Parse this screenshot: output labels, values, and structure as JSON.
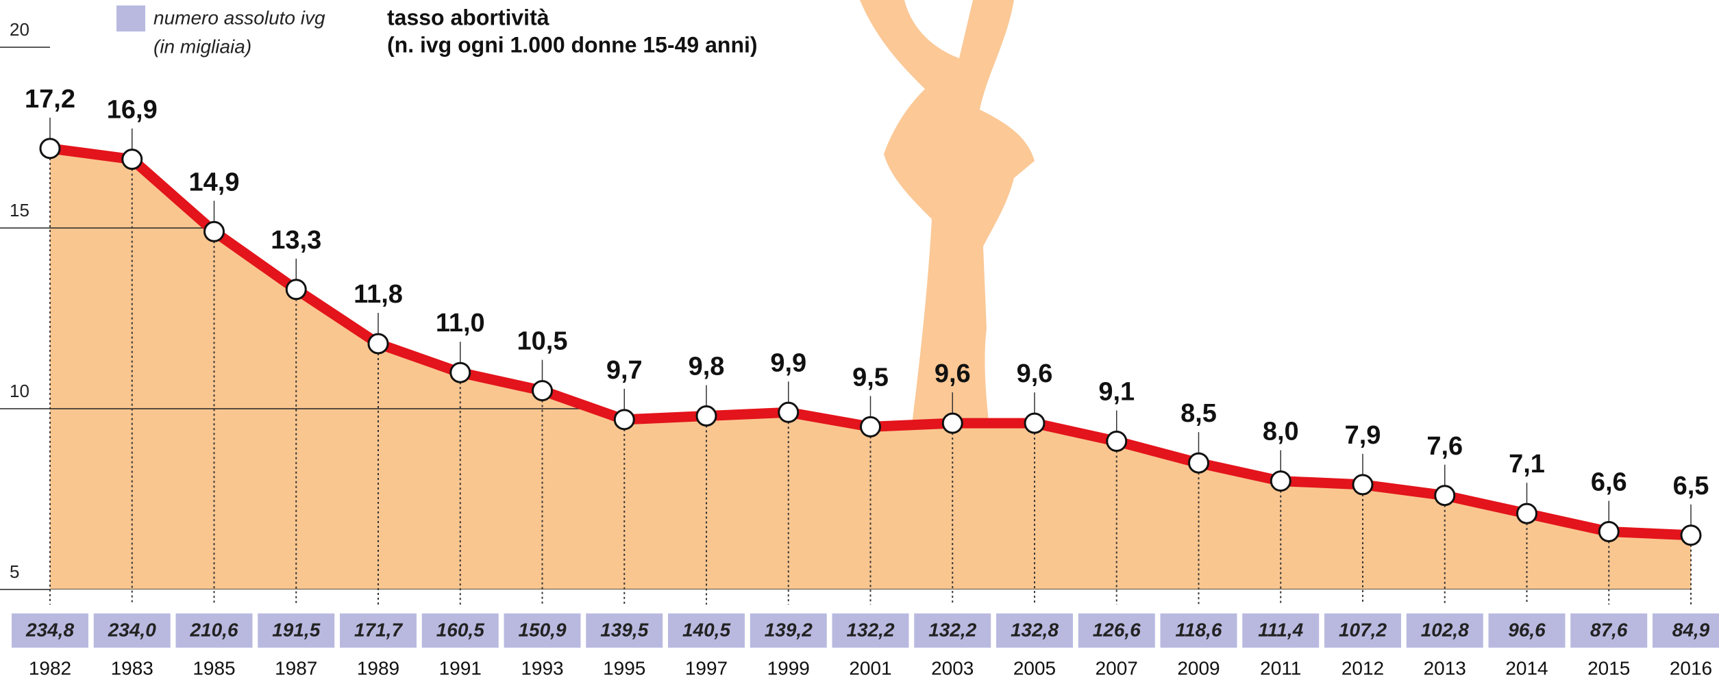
{
  "chart_data": {
    "type": "line",
    "title": "tasso abortività",
    "subtitle": "(n. ivg ogni 1.000 donne 15-49 anni)",
    "categories": [
      "1982",
      "1983",
      "1985",
      "1987",
      "1989",
      "1991",
      "1993",
      "1995",
      "1997",
      "1999",
      "2001",
      "2003",
      "2005",
      "2007",
      "2009",
      "2011",
      "2012",
      "2013",
      "2014",
      "2015",
      "2016"
    ],
    "values": [
      17.2,
      16.9,
      14.9,
      13.3,
      11.8,
      11.0,
      10.5,
      9.7,
      9.8,
      9.9,
      9.5,
      9.6,
      9.6,
      9.1,
      8.5,
      8.0,
      7.9,
      7.6,
      7.1,
      6.6,
      6.5
    ],
    "value_labels": [
      "17,2",
      "16,9",
      "14,9",
      "13,3",
      "11,8",
      "11,0",
      "10,5",
      "9,7",
      "9,8",
      "9,9",
      "9,5",
      "9,6",
      "9,6",
      "9,1",
      "8,5",
      "8,0",
      "7,9",
      "7,6",
      "7,1",
      "6,6",
      "6,5"
    ],
    "color": "#e3141b",
    "area_color": "#f9c690",
    "ylim": [
      5,
      20
    ],
    "yticks": [
      5,
      10,
      15,
      20
    ],
    "grid": true,
    "absolute": {
      "name": "numero assoluto ivg",
      "unit_label": "(in migliaia)",
      "color": "#b9b9e0",
      "values": [
        234.8,
        234.0,
        210.6,
        191.5,
        171.7,
        160.5,
        150.9,
        139.5,
        140.5,
        139.2,
        132.2,
        132.2,
        132.8,
        126.6,
        118.6,
        111.4,
        107.2,
        102.8,
        96.6,
        87.6,
        84.9
      ],
      "value_labels": [
        "234,8",
        "234,0",
        "210,6",
        "191,5",
        "171,7",
        "160,5",
        "150,9",
        "139,5",
        "140,5",
        "139,2",
        "132,2",
        "132,2",
        "132,8",
        "126,6",
        "118,6",
        "111,4",
        "107,2",
        "102,8",
        "96,6",
        "87,6",
        "84,9"
      ]
    }
  }
}
